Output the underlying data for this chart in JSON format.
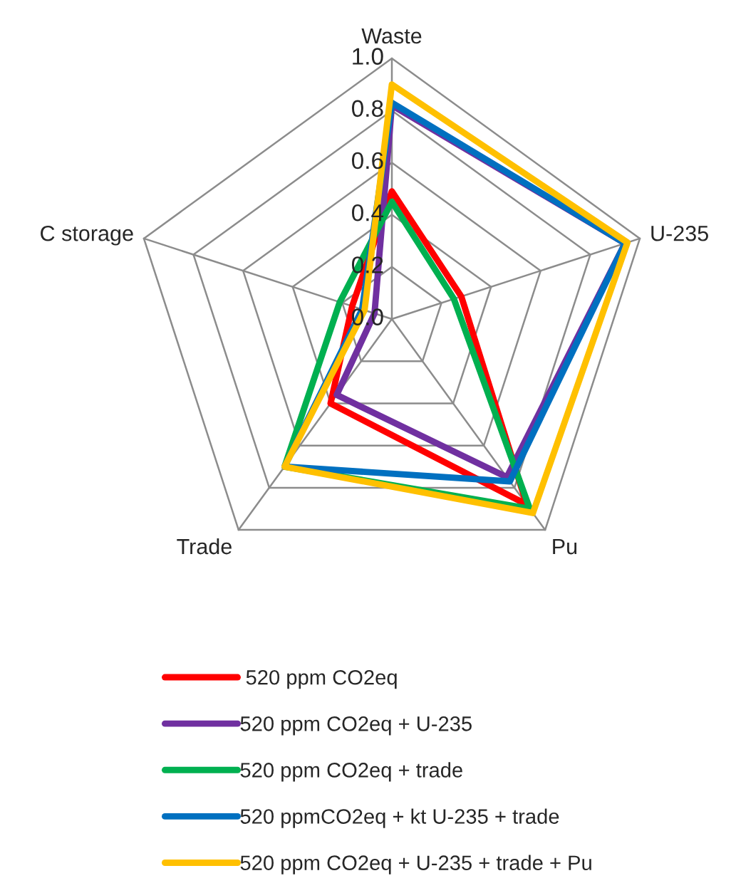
{
  "chart_data": {
    "type": "radar",
    "categories": [
      "Waste",
      "U-235",
      "Pu",
      "Trade",
      "C storage"
    ],
    "ylim": [
      0,
      1.0
    ],
    "yticks": [
      {
        "value": 0,
        "label": "0.0"
      },
      {
        "value": 0.2,
        "label": "0.2"
      },
      {
        "value": 0.4,
        "label": "0.4"
      },
      {
        "value": 0.6,
        "label": "0.6"
      },
      {
        "value": 0.8,
        "label": "0.8"
      },
      {
        "value": 1.0,
        "label": "1.0"
      }
    ],
    "grid": true,
    "legend": "bottom",
    "marker": "none",
    "line_style": "solid",
    "series": [
      {
        "name": " 520 ppm CO2eq",
        "color": "#ff0000",
        "values": [
          0.49,
          0.28,
          0.88,
          0.4,
          0.16
        ]
      },
      {
        "name": "520 ppm CO2eq + U-235",
        "color": "#7030a0",
        "values": [
          0.82,
          0.94,
          0.75,
          0.36,
          0.07
        ]
      },
      {
        "name": "520 ppm CO2eq + trade",
        "color": "#00b050",
        "values": [
          0.45,
          0.25,
          0.9,
          0.7,
          0.21
        ]
      },
      {
        "name": "520 ppmCO2eq + kt U-235 + trade",
        "color": "#0070c0",
        "values": [
          0.83,
          0.94,
          0.77,
          0.7,
          0.12
        ]
      },
      {
        "name": "520 ppm CO2eq + U-235 + trade + Pu",
        "color": "#ffc000",
        "values": [
          0.9,
          0.95,
          0.92,
          0.7,
          0.11
        ]
      }
    ]
  }
}
